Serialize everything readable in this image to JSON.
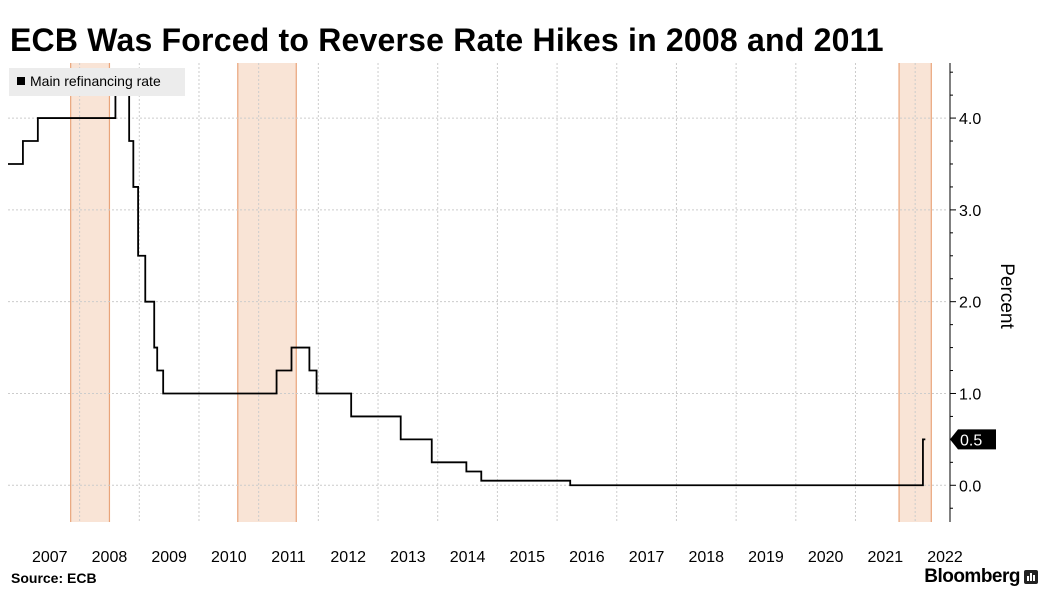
{
  "title": "ECB Was Forced to Reverse Rate Hikes in 2008 and 2011",
  "source": "Source:  ECB",
  "brand": "Bloomberg",
  "chart_data": {
    "type": "line",
    "xlabel": "",
    "ylabel": "Percent",
    "ylim": [
      -0.4,
      4.6
    ],
    "xlim": [
      2006.75,
      2022.5
    ],
    "yticks": [
      0.0,
      1.0,
      2.0,
      3.0,
      4.0
    ],
    "ytick_labels": [
      "0.0",
      "1.0",
      "2.0",
      "3.0",
      "4.0"
    ],
    "xtick_labels": [
      "2007",
      "2008",
      "2009",
      "2010",
      "2011",
      "2012",
      "2013",
      "2014",
      "2015",
      "2016",
      "2017",
      "2018",
      "2019",
      "2020",
      "2021",
      "2022"
    ],
    "grid": true,
    "legend": {
      "placement": "top-left",
      "entries": [
        "Main refinancing rate"
      ]
    },
    "last_value_label": "0.5",
    "colors": {
      "line": "#000000",
      "shade_fill": "#f9e4d6",
      "shade_edge": "#e9a47a",
      "grid": "#cccccc",
      "label_bg": "#000000"
    },
    "shaded_ranges": [
      [
        2007.8,
        2008.45
      ],
      [
        2010.6,
        2011.58
      ],
      [
        2021.68,
        2022.22
      ]
    ],
    "series": [
      {
        "name": "Main refinancing rate",
        "step": true,
        "points": [
          [
            2006.75,
            3.5
          ],
          [
            2007.0,
            3.75
          ],
          [
            2007.25,
            4.0
          ],
          [
            2008.55,
            4.25
          ],
          [
            2008.78,
            3.75
          ],
          [
            2008.85,
            3.25
          ],
          [
            2008.93,
            2.5
          ],
          [
            2009.05,
            2.0
          ],
          [
            2009.2,
            1.5
          ],
          [
            2009.25,
            1.25
          ],
          [
            2009.35,
            1.0
          ],
          [
            2011.25,
            1.25
          ],
          [
            2011.5,
            1.5
          ],
          [
            2011.8,
            1.25
          ],
          [
            2011.92,
            1.0
          ],
          [
            2012.5,
            0.75
          ],
          [
            2013.33,
            0.5
          ],
          [
            2013.85,
            0.25
          ],
          [
            2014.43,
            0.15
          ],
          [
            2014.68,
            0.05
          ],
          [
            2016.17,
            0.0
          ],
          [
            2022.08,
            0.0
          ],
          [
            2022.08,
            0.5
          ],
          [
            2022.12,
            0.5
          ]
        ]
      }
    ]
  }
}
